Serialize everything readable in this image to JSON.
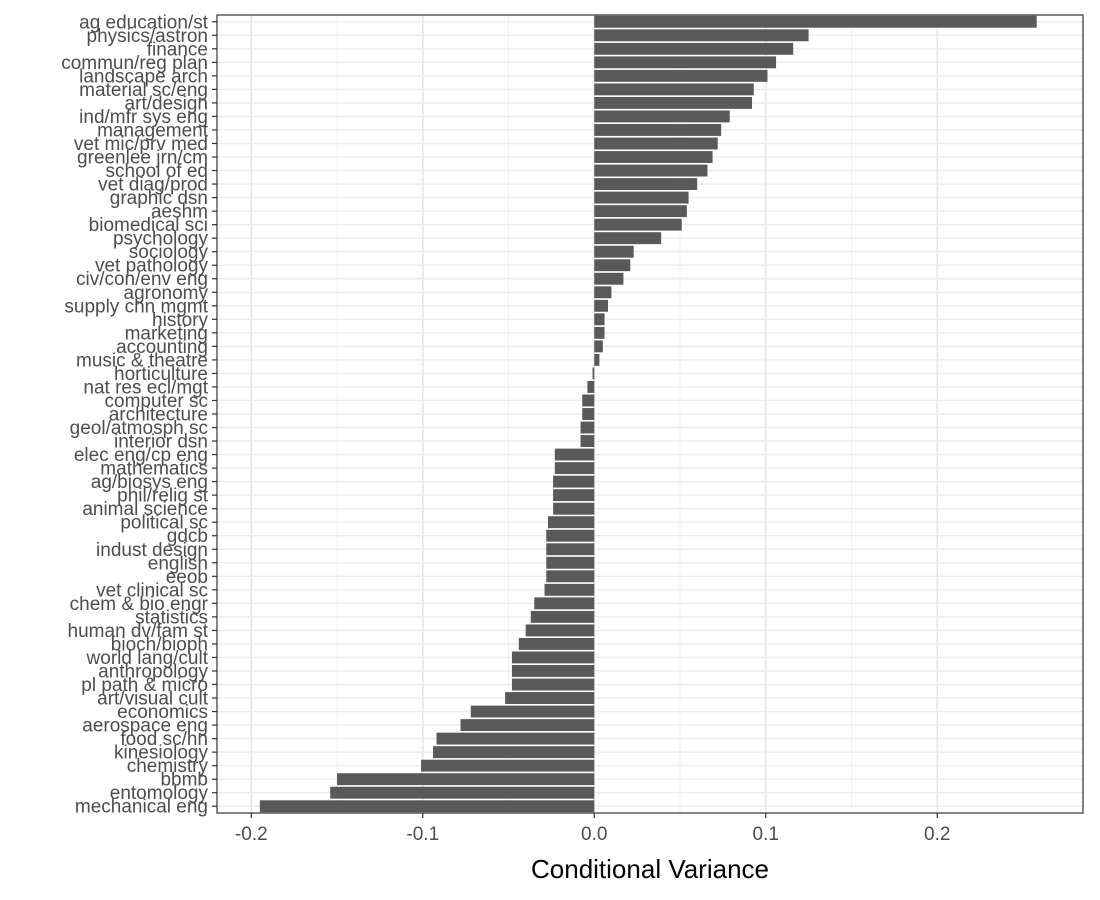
{
  "chart_data": {
    "type": "bar",
    "orientation": "horizontal",
    "xlabel": "Conditional Variance",
    "ylabel": "",
    "xlim": [
      -0.22,
      0.285
    ],
    "xticks": [
      -0.2,
      -0.1,
      0.0,
      0.1,
      0.2
    ],
    "xtick_labels": [
      "-0.2",
      "-0.1",
      "0.0",
      "0.1",
      "0.2"
    ],
    "grid": true,
    "bar_color": "#595959",
    "categories": [
      "ag education/st",
      "physics/astron",
      "finance",
      "commun/reg plan",
      "landscape arch",
      "material sc/eng",
      "art/design",
      "ind/mfr sys eng",
      "management",
      "vet mic/prv med",
      "greenlee jrn/cm",
      "school of ed",
      "vet diag/prod",
      "graphic dsn",
      "aeshm",
      "biomedical sci",
      "psychology",
      "sociology",
      "vet pathology",
      "civ/con/env eng",
      "agronomy",
      "supply chn mgmt",
      "history",
      "marketing",
      "accounting",
      "music & theatre",
      "horticulture",
      "nat res ecl/mgt",
      "computer sc",
      "architecture",
      "geol/atmosph sc",
      "interior dsn",
      "elec eng/cp eng",
      "mathematics",
      "ag/biosys eng",
      "phil/relig st",
      "animal science",
      "political sc",
      "gdcb",
      "indust design",
      "english",
      "eeob",
      "vet clinical sc",
      "chem & bio engr",
      "statistics",
      "human dv/fam st",
      "bioch/bioph",
      "world lang/cult",
      "anthropology",
      "pl path & micro",
      "art/visual cult",
      "economics",
      "aerospace eng",
      "food sc/hn",
      "kinesiology",
      "chemistry",
      "bbmb",
      "entomology",
      "mechanical eng"
    ],
    "values": [
      0.258,
      0.125,
      0.116,
      0.106,
      0.101,
      0.093,
      0.092,
      0.079,
      0.074,
      0.072,
      0.069,
      0.066,
      0.06,
      0.055,
      0.054,
      0.051,
      0.039,
      0.023,
      0.021,
      0.017,
      0.01,
      0.008,
      0.006,
      0.006,
      0.005,
      0.003,
      -0.001,
      -0.004,
      -0.007,
      -0.007,
      -0.008,
      -0.008,
      -0.023,
      -0.023,
      -0.024,
      -0.024,
      -0.024,
      -0.027,
      -0.028,
      -0.028,
      -0.028,
      -0.028,
      -0.029,
      -0.035,
      -0.037,
      -0.04,
      -0.044,
      -0.048,
      -0.048,
      -0.048,
      -0.052,
      -0.072,
      -0.078,
      -0.092,
      -0.094,
      -0.101,
      -0.15,
      -0.154,
      -0.195
    ]
  }
}
